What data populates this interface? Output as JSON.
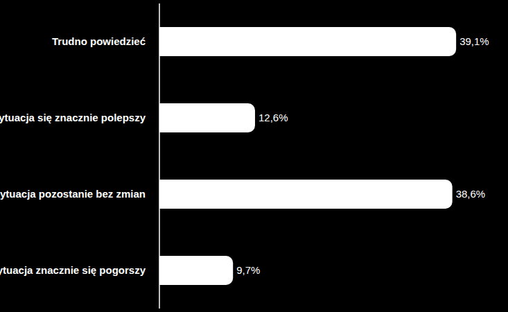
{
  "chart_data": {
    "type": "bar",
    "orientation": "horizontal",
    "categories": [
      "Trudno powiedzieć",
      "Sytuacja się znacznie polepszy",
      "Sytuacja pozostanie  bez zmian",
      "Sytuacja znacznie  się pogorszy"
    ],
    "values": [
      39.1,
      12.6,
      38.6,
      9.7
    ],
    "value_labels": [
      "39,1%",
      "12,6%",
      "38,6%",
      "9,7%"
    ],
    "data_labels": true,
    "color": "#ffffff",
    "xlim": [
      0,
      40
    ],
    "tick_labels": "y",
    "grid": false
  }
}
